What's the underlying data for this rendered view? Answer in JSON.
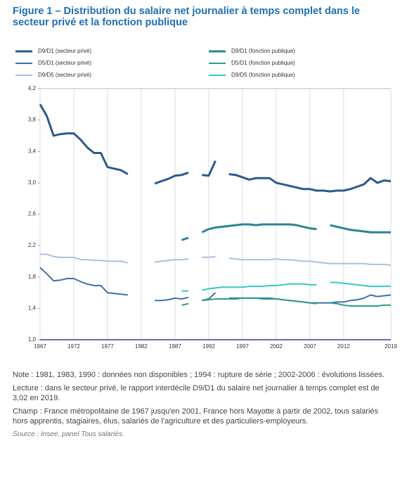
{
  "chart_data": {
    "type": "line",
    "title": "Figure 1 – Distribution du salaire net journalier à temps complet dans le secteur privé et la fonction publique",
    "x": [
      1967,
      1968,
      1969,
      1970,
      1971,
      1972,
      1973,
      1974,
      1975,
      1976,
      1977,
      1978,
      1979,
      1980,
      1981,
      1982,
      1983,
      1984,
      1985,
      1986,
      1987,
      1988,
      1989,
      1990,
      1991,
      1992,
      1993,
      1994,
      1995,
      1996,
      1997,
      1998,
      1999,
      2000,
      2001,
      2002,
      2003,
      2004,
      2005,
      2006,
      2007,
      2008,
      2009,
      2010,
      2011,
      2012,
      2013,
      2014,
      2015,
      2016,
      2017,
      2018,
      2019
    ],
    "xlim": [
      1967,
      2019
    ],
    "xticks": [
      1967,
      1972,
      1977,
      1982,
      1987,
      1992,
      1997,
      2002,
      2007,
      2012,
      2019
    ],
    "ylim": [
      1.0,
      4.2
    ],
    "yticks": [
      {
        "value": 1.0,
        "label": "1,0"
      },
      {
        "value": 1.4,
        "label": "1,4"
      },
      {
        "value": 1.8,
        "label": "1,8"
      },
      {
        "value": 2.2,
        "label": "2,2"
      },
      {
        "value": 2.6,
        "label": "2,6"
      },
      {
        "value": 3.0,
        "label": "3,0"
      },
      {
        "value": 3.4,
        "label": "3,4"
      },
      {
        "value": 3.8,
        "label": "3,8"
      },
      {
        "value": 4.2,
        "label": "4,2"
      }
    ],
    "grid": "x",
    "series": [
      {
        "name": "D9/D1 (secteur privé)",
        "color": "#2b5a8e",
        "width": 3,
        "values": [
          4.0,
          3.85,
          3.6,
          3.62,
          3.63,
          3.63,
          3.55,
          3.45,
          3.38,
          3.38,
          3.2,
          3.18,
          3.16,
          3.11,
          null,
          null,
          null,
          2.99,
          3.02,
          3.05,
          3.09,
          3.1,
          3.13,
          null,
          3.1,
          3.09,
          3.28,
          null,
          3.11,
          3.1,
          3.07,
          3.04,
          3.06,
          3.06,
          3.06,
          3.0,
          2.98,
          2.96,
          2.94,
          2.92,
          2.92,
          2.9,
          2.9,
          2.89,
          2.9,
          2.9,
          2.92,
          2.95,
          2.98,
          3.06,
          3.0,
          3.03,
          3.02
        ]
      },
      {
        "name": "D9/D1 (fonction publique)",
        "color": "#2a8593",
        "width": 3,
        "values": [
          null,
          null,
          null,
          null,
          null,
          null,
          null,
          null,
          null,
          null,
          null,
          null,
          null,
          null,
          null,
          null,
          null,
          null,
          null,
          null,
          null,
          2.27,
          2.3,
          null,
          2.37,
          2.41,
          2.43,
          2.44,
          2.45,
          2.46,
          2.47,
          2.47,
          2.46,
          2.47,
          2.47,
          2.47,
          2.47,
          2.47,
          2.46,
          2.44,
          2.42,
          2.41,
          null,
          2.46,
          2.44,
          2.42,
          2.4,
          2.39,
          2.38,
          2.37,
          2.37,
          2.37,
          2.37
        ]
      },
      {
        "name": "D5/D1 (secteur privé)",
        "color": "#3f70aa",
        "width": 2,
        "values": [
          1.92,
          1.84,
          1.75,
          1.76,
          1.78,
          1.78,
          1.74,
          1.71,
          1.69,
          1.69,
          1.6,
          1.59,
          1.58,
          1.57,
          null,
          null,
          null,
          1.5,
          1.5,
          1.51,
          1.53,
          1.52,
          1.54,
          null,
          1.5,
          1.52,
          1.6,
          null,
          1.53,
          1.53,
          1.53,
          1.53,
          1.53,
          1.53,
          1.53,
          1.52,
          1.51,
          1.5,
          1.49,
          1.48,
          1.47,
          1.47,
          1.47,
          1.47,
          1.48,
          1.48,
          1.5,
          1.51,
          1.53,
          1.57,
          1.55,
          1.56,
          1.57
        ]
      },
      {
        "name": "D5/D1 (fonction publique)",
        "color": "#2c9c8a",
        "width": 2,
        "values": [
          null,
          null,
          null,
          null,
          null,
          null,
          null,
          null,
          null,
          null,
          null,
          null,
          null,
          null,
          null,
          null,
          null,
          null,
          null,
          null,
          null,
          1.44,
          1.46,
          null,
          1.5,
          1.51,
          1.52,
          1.52,
          1.52,
          1.52,
          1.53,
          1.53,
          1.53,
          1.52,
          1.52,
          1.52,
          1.51,
          1.5,
          1.49,
          1.48,
          1.47,
          1.46,
          null,
          1.47,
          1.46,
          1.44,
          1.43,
          1.43,
          1.43,
          1.43,
          1.43,
          1.44,
          1.44
        ]
      },
      {
        "name": "D9/D5 (secteur privé)",
        "color": "#aac0e2",
        "width": 2,
        "values": [
          2.09,
          2.09,
          2.06,
          2.05,
          2.05,
          2.05,
          2.02,
          2.02,
          2.01,
          2.01,
          2.0,
          2.0,
          2.0,
          1.98,
          null,
          null,
          null,
          1.99,
          2.0,
          2.01,
          2.02,
          2.02,
          2.03,
          null,
          2.05,
          2.05,
          2.06,
          null,
          2.04,
          2.03,
          2.02,
          2.02,
          2.02,
          2.02,
          2.02,
          2.03,
          2.02,
          2.02,
          2.01,
          2.0,
          2.0,
          1.99,
          1.98,
          1.97,
          1.97,
          1.97,
          1.97,
          1.97,
          1.97,
          1.96,
          1.96,
          1.96,
          1.95
        ]
      },
      {
        "name": "D9/D5 (fonction publique)",
        "color": "#3cc6c6",
        "width": 2,
        "values": [
          null,
          null,
          null,
          null,
          null,
          null,
          null,
          null,
          null,
          null,
          null,
          null,
          null,
          null,
          null,
          null,
          null,
          null,
          null,
          null,
          null,
          1.62,
          1.62,
          null,
          1.63,
          1.65,
          1.66,
          1.67,
          1.67,
          1.67,
          1.67,
          1.68,
          1.68,
          1.68,
          1.69,
          1.69,
          1.7,
          1.71,
          1.71,
          1.71,
          1.7,
          1.7,
          null,
          1.73,
          1.73,
          1.72,
          1.71,
          1.7,
          1.69,
          1.68,
          1.68,
          1.68,
          1.68
        ]
      }
    ]
  },
  "notes": {
    "note": "Note : 1981, 1983, 1990 : données non disponibles ; 1994 : rupture de série ; 2002-2006 : évolutions lissées.",
    "lecture": "Lecture : dans le secteur privé, le rapport interdécile D9/D1 du salaire net journalier à temps complet est de 3,02 en 2019.",
    "champ": "Champ : France métropolitaine de 1967 jusqu'en 2001, France hors Mayotte à partir de 2002, tous salariés hors apprentis, stagiaires, élus, salariés de l'agriculture et des particuliers-employeurs.",
    "source": "Source : Insee, panel Tous salariés."
  }
}
